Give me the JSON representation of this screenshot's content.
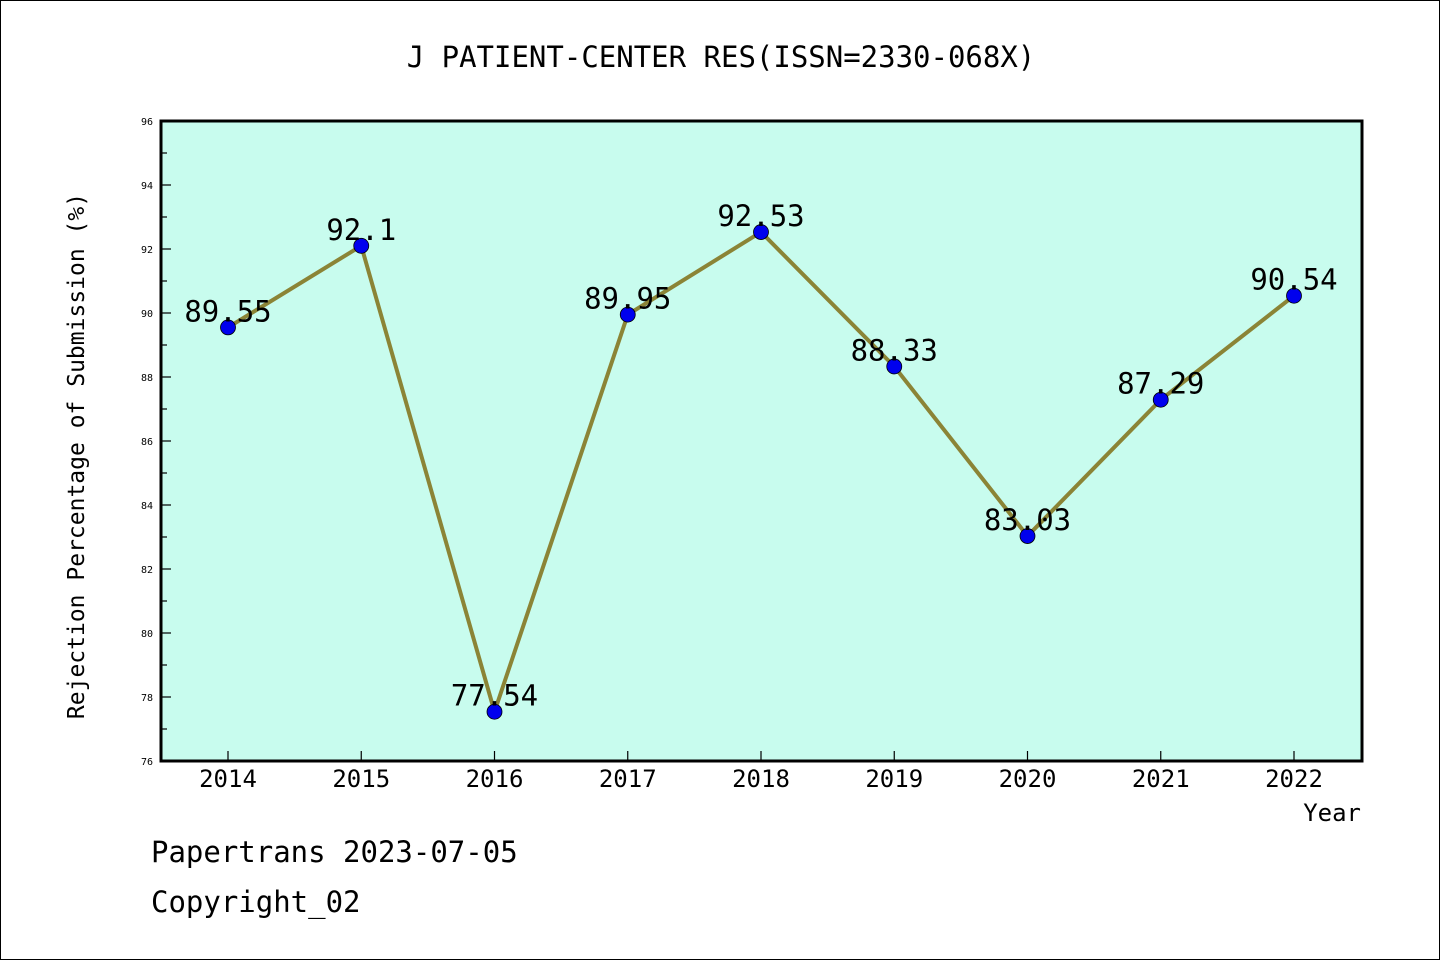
{
  "chart_data": {
    "type": "line",
    "title": "J PATIENT-CENTER RES(ISSN=2330-068X)",
    "xlabel": "Year",
    "ylabel": "Rejection Percentage of Submission (%)",
    "categories": [
      "2014",
      "2015",
      "2016",
      "2017",
      "2018",
      "2019",
      "2020",
      "2021",
      "2022"
    ],
    "values": [
      89.55,
      92.1,
      77.54,
      89.95,
      92.53,
      88.33,
      83.03,
      87.29,
      90.54
    ],
    "data_labels": [
      "89.55",
      "92.1",
      "77.54",
      "89.95",
      "92.53",
      "88.33",
      "83.03",
      "87.29",
      "90.54"
    ],
    "y_ticks": [
      "96",
      "94",
      "92",
      "90",
      "88",
      "86",
      "84",
      "82",
      "80",
      "78",
      "76"
    ],
    "ylim": [
      76,
      96
    ],
    "grid": false,
    "legend": "none",
    "colors": {
      "plot_background": "#c8fcee",
      "line": "#8b8436",
      "marker": "#0000ee",
      "axis": "#000000"
    }
  },
  "footer": {
    "line1": "Papertrans 2023-07-05",
    "line2": "Copyright_02"
  }
}
